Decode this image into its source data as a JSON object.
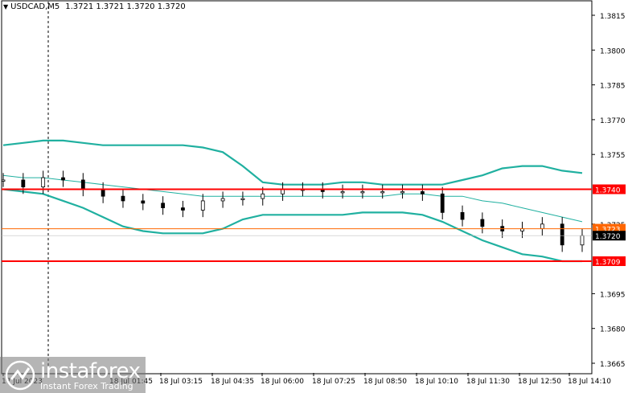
{
  "header": {
    "symbol": "USDCAD,M5",
    "ohlc": "1.3721 1.3721 1.3720 1.3720"
  },
  "price_axis": {
    "ticks": [
      "1.3815",
      "1.3800",
      "1.3785",
      "1.3770",
      "1.3755",
      "1.3725",
      "1.3695",
      "1.3680",
      "1.3665"
    ],
    "tick_values": [
      1.3815,
      1.38,
      1.3785,
      1.377,
      1.3755,
      1.3725,
      1.3695,
      1.368,
      1.3665
    ]
  },
  "time_axis": {
    "ticks": [
      "17 Jul 2023",
      "18 Jul 01:45",
      "18 Jul 03:15",
      "18 Jul 04:35",
      "18 Jul 06:00",
      "18 Jul 07:25",
      "18 Jul 08:50",
      "18 Jul 10:10",
      "18 Jul 11:30",
      "18 Jul 12:50",
      "18 Jul 14:10"
    ]
  },
  "levels": [
    {
      "label": "1.3740",
      "value": 1.374,
      "color": "#ff0000"
    },
    {
      "label": "1.3709",
      "value": 1.3709,
      "color": "#ff0000"
    },
    {
      "label": "1.3723",
      "value": 1.3723,
      "color": "#ff6600"
    },
    {
      "label": "1.3720",
      "value": 1.372,
      "color": "#000000"
    }
  ],
  "colors": {
    "bollinger_band": "#20b0a0",
    "moving_average": "#20b0a0",
    "candle": "#000000",
    "support_resistance": "#ff0000",
    "current_price_bg": "#000000",
    "level_label_bg": "#ff0000"
  },
  "chart_data": {
    "type": "line",
    "y_range": [
      1.366,
      1.3825
    ],
    "series": [
      {
        "role": "upper_band",
        "values": [
          1.3759,
          1.376,
          1.3761,
          1.3761,
          1.376,
          1.3759,
          1.3759,
          1.3759,
          1.3759,
          1.3759,
          1.3758,
          1.3756,
          1.375,
          1.3743,
          1.3742,
          1.3742,
          1.3742,
          1.3743,
          1.3743,
          1.3742,
          1.3742,
          1.3742,
          1.3742,
          1.3744,
          1.3746,
          1.3749,
          1.375,
          1.375,
          1.3748,
          1.3747
        ]
      },
      {
        "role": "middle_ma",
        "values": [
          1.3746,
          1.3745,
          1.3745,
          1.3744,
          1.3743,
          1.3742,
          1.3741,
          1.374,
          1.3739,
          1.3738,
          1.3737,
          1.3737,
          1.3737,
          1.3737,
          1.3737,
          1.3737,
          1.3737,
          1.3737,
          1.3737,
          1.3737,
          1.3738,
          1.3738,
          1.3737,
          1.3737,
          1.3735,
          1.3734,
          1.3732,
          1.373,
          1.3728,
          1.3726
        ]
      },
      {
        "role": "lower_band",
        "values": [
          1.374,
          1.3739,
          1.3738,
          1.3735,
          1.3732,
          1.3728,
          1.3724,
          1.3722,
          1.3721,
          1.3721,
          1.3721,
          1.3723,
          1.3727,
          1.3729,
          1.3729,
          1.3729,
          1.3729,
          1.3729,
          1.373,
          1.373,
          1.373,
          1.3729,
          1.3726,
          1.3722,
          1.3718,
          1.3715,
          1.3712,
          1.3711,
          1.3709,
          1.3709
        ]
      },
      {
        "role": "close",
        "values": [
          1.3744,
          1.3741,
          1.3745,
          1.3744,
          1.374,
          1.3737,
          1.3735,
          1.3734,
          1.3732,
          1.3731,
          1.3735,
          1.3736,
          1.3736,
          1.3738,
          1.374,
          1.374,
          1.3739,
          1.3739,
          1.3739,
          1.3739,
          1.3739,
          1.3738,
          1.373,
          1.3727,
          1.3724,
          1.3722,
          1.3723,
          1.3725,
          1.3716,
          1.372
        ]
      }
    ]
  },
  "logo": {
    "brand": "instaforex",
    "tagline": "Instant Forex Trading"
  }
}
